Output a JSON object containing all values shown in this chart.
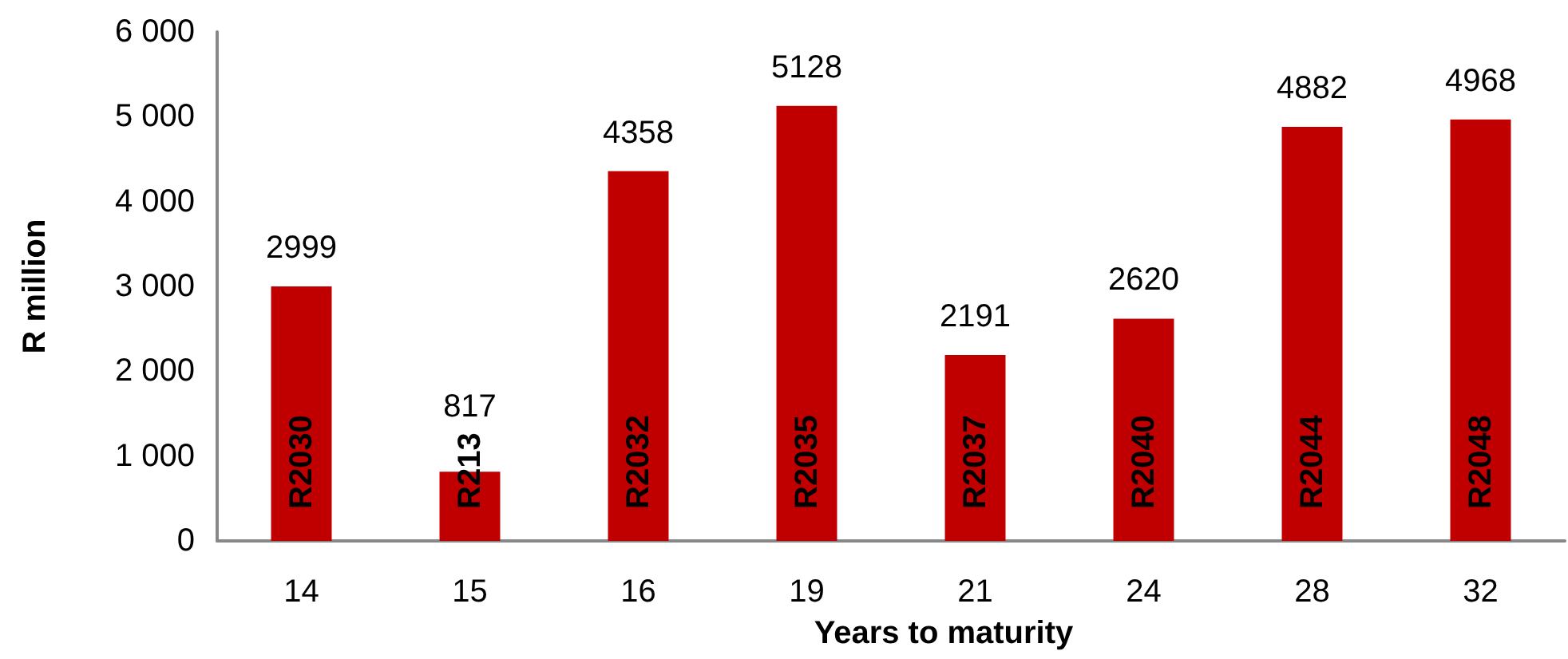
{
  "chart_data": {
    "type": "bar",
    "xlabel": "Years to maturity",
    "ylabel": "R million",
    "categories": [
      "14",
      "15",
      "16",
      "19",
      "21",
      "24",
      "28",
      "32"
    ],
    "values": [
      2999,
      817,
      4358,
      5128,
      2191,
      2620,
      4882,
      4968
    ],
    "color": "#c00000",
    "ylim": [
      0,
      6000
    ],
    "yticks": [
      0,
      {
        "value": 1000,
        "label": "1 000"
      },
      {
        "value": 2000,
        "label": "2 000"
      },
      {
        "value": 3000,
        "label": "3 000"
      },
      {
        "value": 4000,
        "label": "4 000"
      },
      {
        "value": 5000,
        "label": "5 000"
      },
      {
        "value": 6000,
        "label": "6 000"
      }
    ],
    "grid": false,
    "data_labels": true,
    "annotations": [
      "R2030",
      "R213",
      "R2032",
      "R2035",
      "R2037",
      "R2040",
      "R2044",
      "R2048"
    ]
  }
}
